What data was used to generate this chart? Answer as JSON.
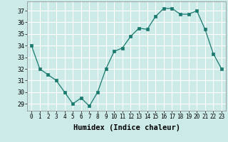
{
  "x": [
    0,
    1,
    2,
    3,
    4,
    5,
    6,
    7,
    8,
    9,
    10,
    11,
    12,
    13,
    14,
    15,
    16,
    17,
    18,
    19,
    20,
    21,
    22,
    23
  ],
  "y": [
    34,
    32,
    31.5,
    31,
    30,
    29,
    29.5,
    28.8,
    30,
    32,
    33.5,
    33.8,
    34.8,
    35.5,
    35.4,
    36.5,
    37.2,
    37.2,
    36.7,
    36.7,
    37.0,
    35.4,
    33.3,
    32.0
  ],
  "line_color": "#1a7a6e",
  "marker_color": "#1a7a6e",
  "bg_color": "#cceae7",
  "grid_color": "#ffffff",
  "xlabel": "Humidex (Indice chaleur)",
  "xlabel_fontsize": 7.5,
  "ytick_min": 29,
  "ytick_max": 37,
  "ytick_step": 1,
  "xtick_labels": [
    "0",
    "1",
    "2",
    "3",
    "4",
    "5",
    "6",
    "7",
    "8",
    "9",
    "10",
    "11",
    "12",
    "13",
    "14",
    "15",
    "16",
    "17",
    "18",
    "19",
    "20",
    "21",
    "22",
    "23"
  ],
  "ylim": [
    28.4,
    37.8
  ],
  "xlim": [
    -0.5,
    23.5
  ]
}
